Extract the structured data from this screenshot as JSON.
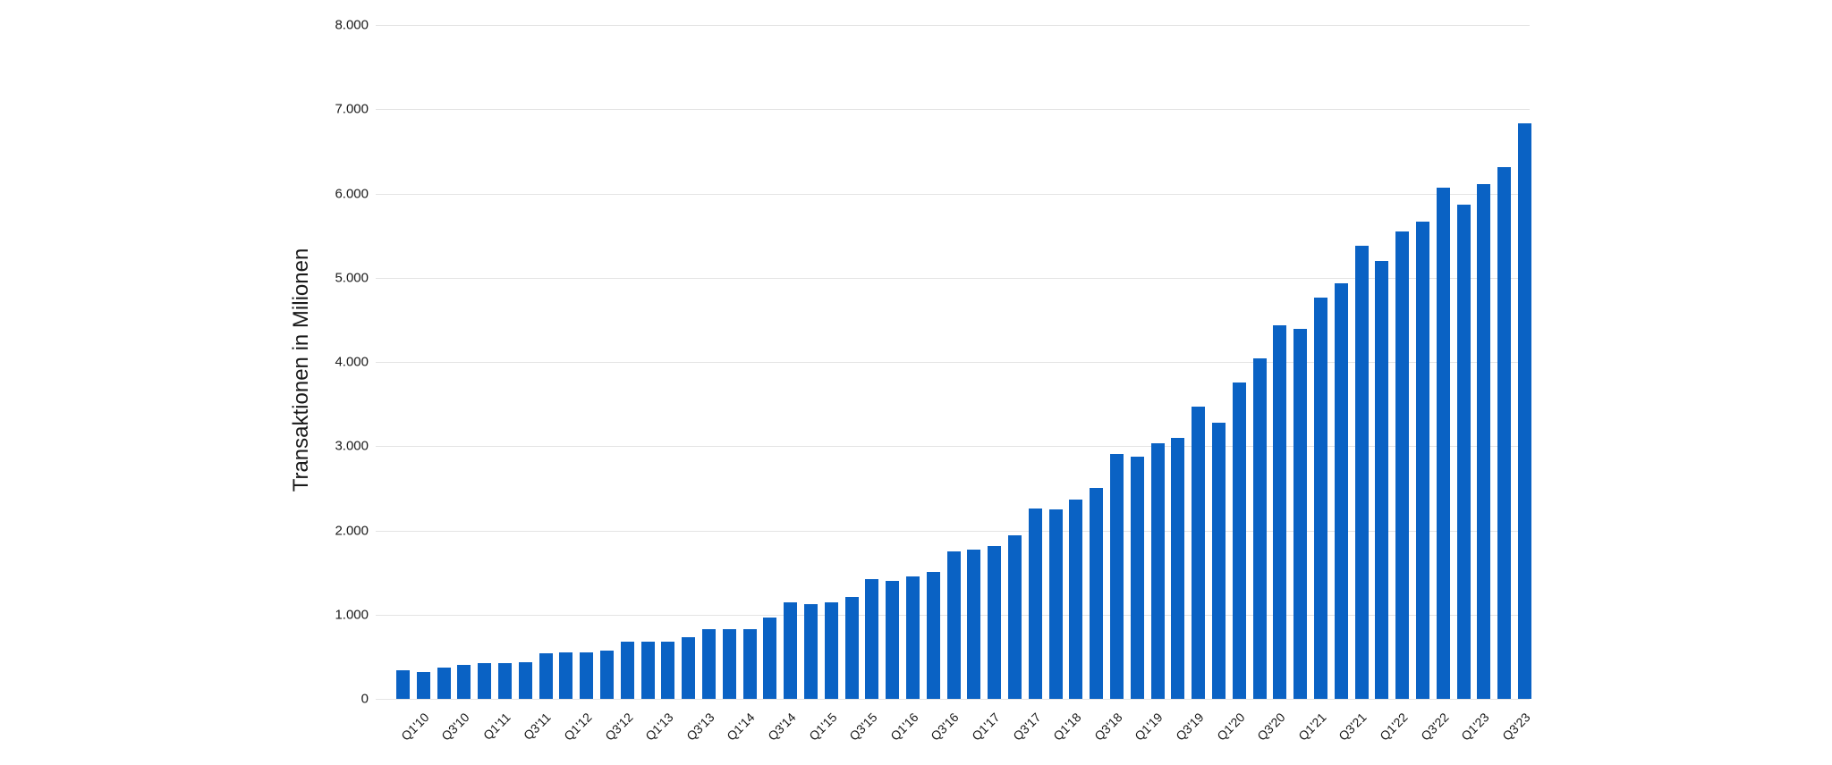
{
  "chart_data": {
    "type": "bar",
    "title": "",
    "xlabel": "",
    "ylabel": "Transaktionen in Milionen",
    "ylim": [
      0,
      8000
    ],
    "yticks": [
      0,
      1000,
      2000,
      3000,
      4000,
      5000,
      6000,
      7000,
      8000
    ],
    "ytick_labels": [
      "0",
      "1.000",
      "2.000",
      "3.000",
      "4.000",
      "5.000",
      "6.000",
      "7.000",
      "8.000"
    ],
    "grid": true,
    "legend": null,
    "bar_color": "#0A62C4",
    "categories": [
      "Q1'10",
      "Q2'10",
      "Q3'10",
      "Q4'10",
      "Q1'11",
      "Q2'11",
      "Q3'11",
      "Q4'11",
      "Q1'12",
      "Q2'12",
      "Q3'12",
      "Q4'12",
      "Q1'13",
      "Q2'13",
      "Q3'13",
      "Q4'13",
      "Q1'14",
      "Q2'14",
      "Q3'14",
      "Q4'14",
      "Q1'15",
      "Q2'15",
      "Q3'15",
      "Q4'15",
      "Q1'16",
      "Q2'16",
      "Q3'16",
      "Q4'16",
      "Q1'17",
      "Q2'17",
      "Q3'17",
      "Q4'17",
      "Q1'18",
      "Q2'18",
      "Q3'18",
      "Q4'18",
      "Q1'19",
      "Q2'19",
      "Q3'19",
      "Q4'19",
      "Q1'20",
      "Q2'20",
      "Q3'20",
      "Q4'20",
      "Q1'21",
      "Q2'21",
      "Q3'21",
      "Q4'21",
      "Q1'22",
      "Q2'22",
      "Q3'22",
      "Q4'22",
      "Q1'23",
      "Q2'23",
      "Q3'23",
      "Q4'23"
    ],
    "visible_xtick_labels": [
      "Q1'10",
      "Q3'10",
      "Q1'11",
      "Q3'11",
      "Q1'12",
      "Q3'12",
      "Q1'13",
      "Q3'13",
      "Q1'14",
      "Q3'14",
      "Q1'15",
      "Q3'15",
      "Q1'16",
      "Q3'16",
      "Q1'17",
      "Q3'17",
      "Q1'18",
      "Q3'18",
      "Q1'19",
      "Q3'19",
      "Q1'20",
      "Q3'20",
      "Q1'21",
      "Q3'21",
      "Q1'22",
      "Q3'22",
      "Q1'23",
      "Q3'23"
    ],
    "values": [
      340,
      320,
      370,
      400,
      420,
      420,
      440,
      540,
      550,
      550,
      575,
      680,
      680,
      680,
      730,
      830,
      830,
      830,
      970,
      1150,
      1120,
      1150,
      1210,
      1420,
      1400,
      1455,
      1510,
      1750,
      1775,
      1815,
      1945,
      2255,
      2245,
      2365,
      2500,
      2910,
      2875,
      3030,
      3100,
      3465,
      3275,
      3755,
      4040,
      4430,
      4390,
      4765,
      4930,
      5375,
      5195,
      5550,
      5670,
      6070,
      5870,
      6110,
      6310,
      6835
    ]
  }
}
